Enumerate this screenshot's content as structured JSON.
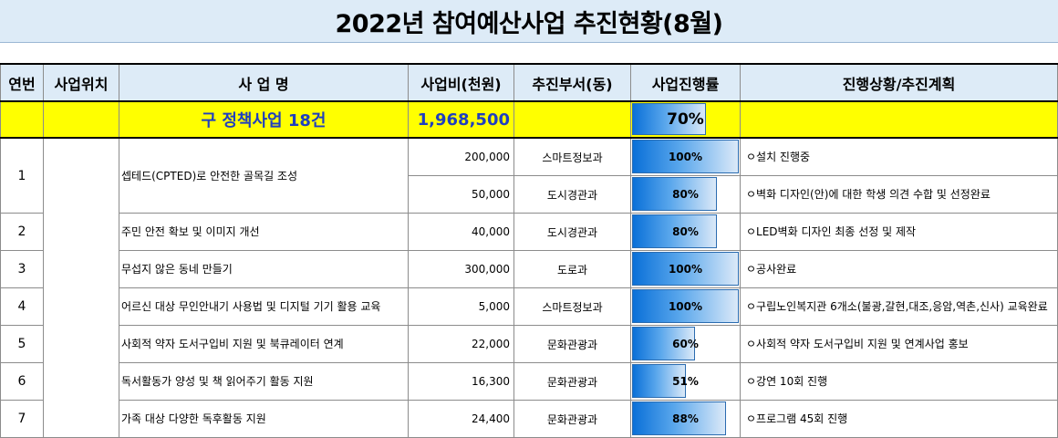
{
  "title": "2022년 참여예산사업 추진현황(8월)",
  "headers": {
    "no": "연번",
    "location": "사업위치",
    "name": "사 업 명",
    "budget": "사업비(천원)",
    "dept": "추진부서(동)",
    "progress": "사업진행률",
    "status": "진행상황/추진계획"
  },
  "summary": {
    "name": "구 정책사업 18건",
    "budget": "1,968,500",
    "progress": "70%",
    "progress_value": 70
  },
  "rows": [
    {
      "no": "1",
      "name": "셉테드(CPTED)로 안전한 골목길 조성",
      "budget": "200,000",
      "dept": "스마트정보과",
      "progress": "100%",
      "progress_value": 100,
      "status": "ㅇ설치 진행중"
    },
    {
      "budget": "50,000",
      "dept": "도시경관과",
      "progress": "80%",
      "progress_value": 80,
      "status": "ㅇ벽화 디자인(안)에 대한 학생 의견 수합 및 선정완료"
    },
    {
      "no": "2",
      "name": "주민 안전 확보 및 이미지 개선",
      "budget": "40,000",
      "dept": "도시경관과",
      "progress": "80%",
      "progress_value": 80,
      "status": "ㅇLED벽화 디자인 최종 선정 및 제작"
    },
    {
      "no": "3",
      "name": "무섭지 않은 동네 만들기",
      "budget": "300,000",
      "dept": "도로과",
      "progress": "100%",
      "progress_value": 100,
      "status": "ㅇ공사완료"
    },
    {
      "no": "4",
      "name": "어르신 대상 무인안내기 사용법 및 디지털 기기 활용 교육",
      "budget": "5,000",
      "dept": "스마트정보과",
      "progress": "100%",
      "progress_value": 100,
      "status": "ㅇ구립노인복지관 6개소(불광,갈현,대조,응암,역촌,신사) 교육완료"
    },
    {
      "no": "5",
      "name": "사회적 약자 도서구입비 지원 및 북큐레이터 연계",
      "budget": "22,000",
      "dept": "문화관광과",
      "progress": "60%",
      "progress_value": 60,
      "status": "ㅇ사회적 약자 도서구입비 지원 및 연계사업 홍보"
    },
    {
      "no": "6",
      "name": "독서활동가 양성 및 책 읽어주기 활동 지원",
      "budget": "16,300",
      "dept": "문화관광과",
      "progress": "51%",
      "progress_value": 51,
      "status": "ㅇ강연 10회 진행"
    },
    {
      "no": "7",
      "name": "가족 대상 다양한 독후활동 지원",
      "budget": "24,400",
      "dept": "문화관광과",
      "progress": "88%",
      "progress_value": 88,
      "status": "ㅇ프로그램 45회 진행"
    }
  ]
}
